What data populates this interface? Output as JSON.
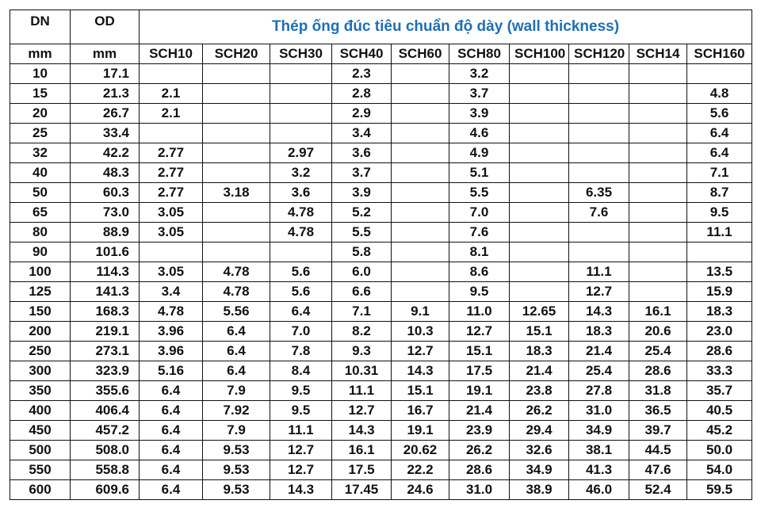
{
  "header": {
    "dn": "DN",
    "od": "OD",
    "title": "Thép ống đúc tiêu chuẩn độ dày  (wall thickness)",
    "units": [
      "mm",
      "mm"
    ],
    "schedules": [
      "SCH10",
      "SCH20",
      "SCH30",
      "SCH40",
      "SCH60",
      "SCH80",
      "SCH100",
      "SCH120",
      "SCH14",
      "SCH160"
    ]
  },
  "table": {
    "rows": [
      [
        "10",
        "17.1",
        null,
        null,
        null,
        "2.3",
        null,
        "3.2",
        null,
        null,
        null,
        null
      ],
      [
        "15",
        "21.3",
        "2.1",
        null,
        null,
        "2.8",
        null,
        "3.7",
        null,
        null,
        null,
        "4.8"
      ],
      [
        "20",
        "26.7",
        "2.1",
        null,
        null,
        "2.9",
        null,
        "3.9",
        null,
        null,
        null,
        "5.6"
      ],
      [
        "25",
        "33.4",
        null,
        null,
        null,
        "3.4",
        null,
        "4.6",
        null,
        null,
        null,
        "6.4"
      ],
      [
        "32",
        "42.2",
        "2.77",
        null,
        "2.97",
        "3.6",
        null,
        "4.9",
        null,
        null,
        null,
        "6.4"
      ],
      [
        "40",
        "48.3",
        "2.77",
        null,
        "3.2",
        "3.7",
        null,
        "5.1",
        null,
        null,
        null,
        "7.1"
      ],
      [
        "50",
        "60.3",
        "2.77",
        "3.18",
        "3.6",
        "3.9",
        null,
        "5.5",
        null,
        "6.35",
        null,
        "8.7"
      ],
      [
        "65",
        "73.0",
        "3.05",
        null,
        "4.78",
        "5.2",
        null,
        "7.0",
        null,
        "7.6",
        null,
        "9.5"
      ],
      [
        "80",
        "88.9",
        "3.05",
        null,
        "4.78",
        "5.5",
        null,
        "7.6",
        null,
        null,
        null,
        "11.1"
      ],
      [
        "90",
        "101.6",
        null,
        null,
        null,
        "5.8",
        null,
        "8.1",
        null,
        null,
        null,
        null
      ],
      [
        "100",
        "114.3",
        "3.05",
        "4.78",
        "5.6",
        "6.0",
        null,
        "8.6",
        null,
        "11.1",
        null,
        "13.5"
      ],
      [
        "125",
        "141.3",
        "3.4",
        "4.78",
        "5.6",
        "6.6",
        null,
        "9.5",
        null,
        "12.7",
        null,
        "15.9"
      ],
      [
        "150",
        "168.3",
        "4.78",
        "5.56",
        "6.4",
        "7.1",
        "9.1",
        "11.0",
        "12.65",
        "14.3",
        "16.1",
        "18.3"
      ],
      [
        "200",
        "219.1",
        "3.96",
        "6.4",
        "7.0",
        "8.2",
        "10.3",
        "12.7",
        "15.1",
        "18.3",
        "20.6",
        "23.0"
      ],
      [
        "250",
        "273.1",
        "3.96",
        "6.4",
        "7.8",
        "9.3",
        "12.7",
        "15.1",
        "18.3",
        "21.4",
        "25.4",
        "28.6"
      ],
      [
        "300",
        "323.9",
        "5.16",
        "6.4",
        "8.4",
        "10.31",
        "14.3",
        "17.5",
        "21.4",
        "25.4",
        "28.6",
        "33.3"
      ],
      [
        "350",
        "355.6",
        "6.4",
        "7.9",
        "9.5",
        "11.1",
        "15.1",
        "19.1",
        "23.8",
        "27.8",
        "31.8",
        "35.7"
      ],
      [
        "400",
        "406.4",
        "6.4",
        "7.92",
        "9.5",
        "12.7",
        "16.7",
        "21.4",
        "26.2",
        "31.0",
        "36.5",
        "40.5"
      ],
      [
        "450",
        "457.2",
        "6.4",
        "7.9",
        "11.1",
        "14.3",
        "19.1",
        "23.9",
        "29.4",
        "34.9",
        "39.7",
        "45.2"
      ],
      [
        "500",
        "508.0",
        "6.4",
        "9.53",
        "12.7",
        "16.1",
        "20.62",
        "26.2",
        "32.6",
        "38.1",
        "44.5",
        "50.0"
      ],
      [
        "550",
        "558.8",
        "6.4",
        "9.53",
        "12.7",
        "17.5",
        "22.2",
        "28.6",
        "34.9",
        "41.3",
        "47.6",
        "54.0"
      ],
      [
        "600",
        "609.6",
        "6.4",
        "9.53",
        "14.3",
        "17.45",
        "24.6",
        "31.0",
        "38.9",
        "46.0",
        "52.4",
        "59.5"
      ]
    ]
  }
}
